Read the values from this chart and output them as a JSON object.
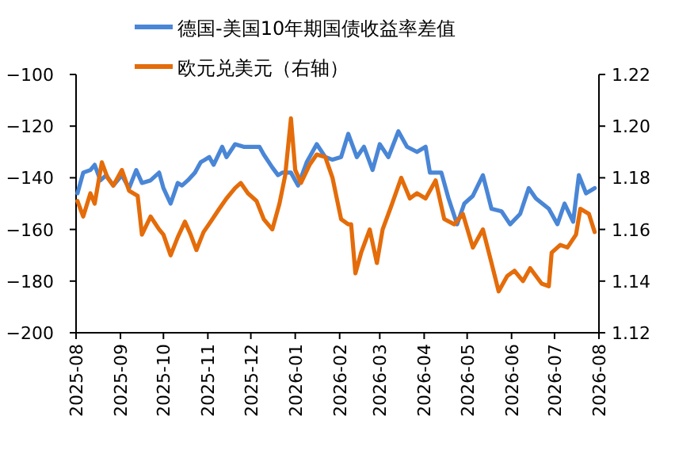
{
  "chart_data": {
    "type": "line",
    "legend": "top",
    "grid": false,
    "line_style": "solid",
    "xlim": [
      "2025-08",
      "2026-08"
    ],
    "xticks": [
      "2025-08",
      "2025-09",
      "2025-10",
      "2025-11",
      "2025-12",
      "2026-01",
      "2026-02",
      "2026-03",
      "2026-04",
      "2026-05",
      "2026-06",
      "2026-07",
      "2026-08"
    ],
    "ylim": [
      -200,
      -100
    ],
    "yticks": [
      -200,
      -180,
      -160,
      -140,
      -120,
      -100
    ],
    "y2lim": [
      1.12,
      1.22
    ],
    "y2ticks": [
      {
        "value": 1.12,
        "label": "1.12"
      },
      {
        "value": 1.14,
        "label": "1.14"
      },
      {
        "value": 1.16,
        "label": "1.16"
      },
      {
        "value": 1.18,
        "label": "1.18"
      },
      {
        "value": 1.2,
        "label": "1.20"
      },
      {
        "value": 1.22,
        "label": "1.22"
      }
    ],
    "series": [
      {
        "name": "德国-美国10年期国债收益率差值",
        "color": "#4a86d6",
        "x": [
          "2025-08-02",
          "2025-08-06",
          "2025-08-11",
          "2025-08-14",
          "2025-08-18",
          "2025-08-22",
          "2025-08-27",
          "2025-09-02",
          "2025-09-07",
          "2025-09-12",
          "2025-09-16",
          "2025-09-22",
          "2025-09-28",
          "2025-10-01",
          "2025-10-06",
          "2025-10-11",
          "2025-10-14",
          "2025-10-18",
          "2025-10-23",
          "2025-10-27",
          "2025-11-02",
          "2025-11-05",
          "2025-11-11",
          "2025-11-14",
          "2025-11-20",
          "2025-11-26",
          "2025-12-01",
          "2025-12-07",
          "2025-12-10",
          "2025-12-16",
          "2025-12-20",
          "2025-12-23",
          "2025-12-29",
          "2026-01-03",
          "2026-01-09",
          "2026-01-16",
          "2026-01-22",
          "2026-01-27",
          "2026-02-02",
          "2026-02-07",
          "2026-02-13",
          "2026-02-18",
          "2026-02-24",
          "2026-03-01",
          "2026-03-07",
          "2026-03-14",
          "2026-03-20",
          "2026-03-27",
          "2026-04-02",
          "2026-04-05",
          "2026-04-13",
          "2026-04-18",
          "2026-04-24",
          "2026-04-29",
          "2026-05-05",
          "2026-05-12",
          "2026-05-18",
          "2026-05-25",
          "2026-05-31",
          "2026-06-07",
          "2026-06-13",
          "2026-06-18",
          "2026-06-27",
          "2026-07-03",
          "2026-07-08",
          "2026-07-14",
          "2026-07-18",
          "2026-07-23",
          "2026-07-29"
        ],
        "values": [
          -146,
          -138,
          -137,
          -135,
          -141,
          -139,
          -143,
          -139,
          -144,
          -137,
          -142,
          -141,
          -138,
          -144,
          -150,
          -142,
          -143,
          -141,
          -138,
          -134,
          -132,
          -135,
          -128,
          -132,
          -127,
          -128,
          -128,
          -128,
          -131,
          -136,
          -139,
          -138,
          -138,
          -143,
          -134,
          -127,
          -132,
          -133,
          -132,
          -123,
          -132,
          -128,
          -137,
          -127,
          -132,
          -122,
          -128,
          -130,
          -128,
          -138,
          -138,
          -148,
          -158,
          -150,
          -147,
          -139,
          -152,
          -153,
          -158,
          -154,
          -144,
          -148,
          -152,
          -158,
          -150,
          -157,
          -139,
          -146,
          -144
        ]
      },
      {
        "name": "欧元兑美元（右轴）",
        "color": "#e46c0a",
        "axis": "y2",
        "x": [
          "2025-08-02",
          "2025-08-06",
          "2025-08-11",
          "2025-08-14",
          "2025-08-19",
          "2025-08-23",
          "2025-08-27",
          "2025-09-02",
          "2025-09-07",
          "2025-09-13",
          "2025-09-16",
          "2025-09-22",
          "2025-09-28",
          "2025-10-01",
          "2025-10-06",
          "2025-10-11",
          "2025-10-16",
          "2025-10-20",
          "2025-10-24",
          "2025-10-29",
          "2025-11-03",
          "2025-11-09",
          "2025-11-14",
          "2025-11-20",
          "2025-11-24",
          "2025-11-29",
          "2025-12-05",
          "2025-12-10",
          "2025-12-16",
          "2025-12-21",
          "2025-12-25",
          "2025-12-29",
          "2026-01-01",
          "2026-01-05",
          "2026-01-11",
          "2026-01-16",
          "2026-01-22",
          "2026-01-27",
          "2026-02-02",
          "2026-02-07",
          "2026-02-09",
          "2026-02-12",
          "2026-02-16",
          "2026-02-22",
          "2026-02-27",
          "2026-03-03",
          "2026-03-09",
          "2026-03-16",
          "2026-03-22",
          "2026-03-27",
          "2026-04-02",
          "2026-04-09",
          "2026-04-15",
          "2026-04-22",
          "2026-04-28",
          "2026-05-05",
          "2026-05-12",
          "2026-05-18",
          "2026-05-23",
          "2026-05-29",
          "2026-06-03",
          "2026-06-09",
          "2026-06-14",
          "2026-06-22",
          "2026-06-27",
          "2026-06-29",
          "2026-07-05",
          "2026-07-10",
          "2026-07-16",
          "2026-07-19",
          "2026-07-25",
          "2026-07-29"
        ],
        "values": [
          1.171,
          1.165,
          1.174,
          1.17,
          1.186,
          1.18,
          1.177,
          1.183,
          1.175,
          1.173,
          1.158,
          1.165,
          1.16,
          1.158,
          1.15,
          1.157,
          1.163,
          1.158,
          1.152,
          1.159,
          1.163,
          1.168,
          1.172,
          1.176,
          1.178,
          1.174,
          1.171,
          1.164,
          1.16,
          1.17,
          1.181,
          1.203,
          1.183,
          1.178,
          1.185,
          1.189,
          1.188,
          1.18,
          1.164,
          1.162,
          1.162,
          1.143,
          1.151,
          1.16,
          1.147,
          1.16,
          1.169,
          1.18,
          1.172,
          1.174,
          1.172,
          1.179,
          1.164,
          1.162,
          1.166,
          1.153,
          1.16,
          1.147,
          1.136,
          1.142,
          1.144,
          1.14,
          1.145,
          1.139,
          1.138,
          1.151,
          1.154,
          1.153,
          1.158,
          1.168,
          1.166,
          1.159
        ]
      }
    ]
  }
}
